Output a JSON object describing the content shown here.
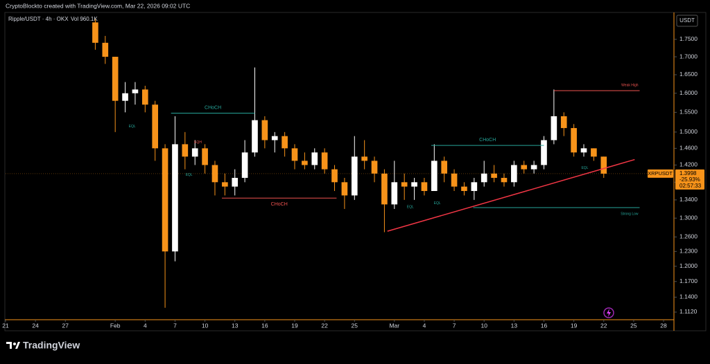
{
  "header": {
    "text": "CryptoBlockto created with TradingView.com, Mar 22, 2026 09:02 UTC"
  },
  "chart_data": {
    "type": "candlestick",
    "title": "Ripple/USDT · 4h · OKX",
    "volume_label": "Vol 960.1K",
    "currency": "USDT",
    "symbol": "XRPUSDT",
    "last_price": 1.3998,
    "change": {
      "value": -25.93,
      "label": "-25.93%"
    },
    "countdown": "02:57:33",
    "up_color": "#ffffff",
    "down_color": "#f7931a",
    "log_scale": true,
    "xlim": [
      0,
      67.04
    ],
    "ylim": [
      1.098,
      1.83
    ],
    "xticks": [
      {
        "value": 0,
        "label": "21"
      },
      {
        "value": 3,
        "label": "24"
      },
      {
        "value": 6,
        "label": "27"
      },
      {
        "value": 11,
        "label": "Feb"
      },
      {
        "value": 14,
        "label": "4"
      },
      {
        "value": 17,
        "label": "7"
      },
      {
        "value": 20,
        "label": "10"
      },
      {
        "value": 23,
        "label": "13"
      },
      {
        "value": 26,
        "label": "16"
      },
      {
        "value": 29,
        "label": "19"
      },
      {
        "value": 32,
        "label": "22"
      },
      {
        "value": 35,
        "label": "25"
      },
      {
        "value": 39,
        "label": "Mar"
      },
      {
        "value": 42,
        "label": "4"
      },
      {
        "value": 45,
        "label": "7"
      },
      {
        "value": 48,
        "label": "10"
      },
      {
        "value": 51,
        "label": "13"
      },
      {
        "value": 54,
        "label": "16"
      },
      {
        "value": 57,
        "label": "19"
      },
      {
        "value": 60,
        "label": "22"
      },
      {
        "value": 63,
        "label": "25"
      },
      {
        "value": 66,
        "label": "28"
      }
    ],
    "yticks": [
      {
        "value": 1.75,
        "label": "1.7500"
      },
      {
        "value": 1.7,
        "label": "1.7000"
      },
      {
        "value": 1.65,
        "label": "1.6500"
      },
      {
        "value": 1.6,
        "label": "1.6000"
      },
      {
        "value": 1.55,
        "label": "1.5500"
      },
      {
        "value": 1.5,
        "label": "1.5000"
      },
      {
        "value": 1.46,
        "label": "1.4600"
      },
      {
        "value": 1.42,
        "label": "1.4200"
      },
      {
        "value": 1.38,
        "label": "1.3800"
      },
      {
        "value": 1.34,
        "label": "1.3400"
      },
      {
        "value": 1.3,
        "label": "1.3000"
      },
      {
        "value": 1.26,
        "label": "1.2600"
      },
      {
        "value": 1.23,
        "label": "1.2300"
      },
      {
        "value": 1.2,
        "label": "1.2000"
      },
      {
        "value": 1.17,
        "label": "1.1700"
      },
      {
        "value": 1.14,
        "label": "1.1400"
      },
      {
        "value": 1.112,
        "label": "1.1120"
      }
    ],
    "x": [
      9,
      10,
      11,
      12,
      13,
      14,
      15,
      16,
      17,
      18,
      19,
      20,
      21,
      22,
      23,
      24,
      25,
      26,
      27,
      28,
      29,
      30,
      31,
      32,
      33,
      34,
      35,
      36,
      37,
      38,
      39,
      40,
      41,
      42,
      43,
      44,
      45,
      46,
      47,
      48,
      49,
      50,
      51,
      52,
      53,
      54,
      55,
      56,
      57,
      58,
      59,
      60
    ],
    "open": [
      1.8,
      1.74,
      1.7,
      1.58,
      1.6,
      1.61,
      1.57,
      1.46,
      1.23,
      1.47,
      1.44,
      1.46,
      1.42,
      1.38,
      1.37,
      1.39,
      1.45,
      1.53,
      1.48,
      1.49,
      1.46,
      1.43,
      1.42,
      1.45,
      1.41,
      1.38,
      1.35,
      1.44,
      1.43,
      1.4,
      1.33,
      1.38,
      1.37,
      1.38,
      1.36,
      1.43,
      1.4,
      1.37,
      1.36,
      1.38,
      1.4,
      1.39,
      1.38,
      1.42,
      1.41,
      1.42,
      1.48,
      1.54,
      1.51,
      1.45,
      1.46,
      1.44
    ],
    "high": [
      1.81,
      1.76,
      1.7,
      1.63,
      1.63,
      1.62,
      1.58,
      1.47,
      1.54,
      1.5,
      1.48,
      1.47,
      1.43,
      1.4,
      1.41,
      1.48,
      1.67,
      1.54,
      1.5,
      1.5,
      1.47,
      1.45,
      1.46,
      1.46,
      1.42,
      1.39,
      1.49,
      1.48,
      1.44,
      1.41,
      1.43,
      1.4,
      1.39,
      1.39,
      1.47,
      1.44,
      1.41,
      1.38,
      1.39,
      1.43,
      1.42,
      1.4,
      1.43,
      1.43,
      1.43,
      1.49,
      1.61,
      1.55,
      1.52,
      1.47,
      1.46,
      1.44
    ],
    "low": [
      1.72,
      1.68,
      1.5,
      1.55,
      1.57,
      1.55,
      1.43,
      1.12,
      1.21,
      1.41,
      1.42,
      1.4,
      1.35,
      1.35,
      1.35,
      1.38,
      1.44,
      1.46,
      1.45,
      1.44,
      1.41,
      1.41,
      1.41,
      1.4,
      1.36,
      1.32,
      1.34,
      1.41,
      1.38,
      1.27,
      1.32,
      1.34,
      1.34,
      1.35,
      1.36,
      1.38,
      1.36,
      1.35,
      1.34,
      1.37,
      1.38,
      1.37,
      1.37,
      1.4,
      1.4,
      1.41,
      1.47,
      1.49,
      1.44,
      1.44,
      1.43,
      1.39
    ],
    "close": [
      1.74,
      1.7,
      1.58,
      1.6,
      1.61,
      1.57,
      1.46,
      1.23,
      1.47,
      1.44,
      1.46,
      1.42,
      1.38,
      1.37,
      1.39,
      1.45,
      1.53,
      1.48,
      1.49,
      1.46,
      1.43,
      1.42,
      1.45,
      1.41,
      1.38,
      1.35,
      1.44,
      1.43,
      1.4,
      1.33,
      1.38,
      1.37,
      1.38,
      1.36,
      1.43,
      1.4,
      1.37,
      1.36,
      1.38,
      1.4,
      1.39,
      1.38,
      1.42,
      1.41,
      1.42,
      1.48,
      1.54,
      1.51,
      1.45,
      1.46,
      1.44,
      1.3998
    ],
    "annotations": [
      {
        "text": "CHoCH",
        "x1": 16.6,
        "x2": 25.0,
        "y": 1.548,
        "color": "#26a69a",
        "label_position": "above"
      },
      {
        "text": "CHoCH",
        "x1": 21.7,
        "x2": 33.2,
        "y": 1.344,
        "color": "#ef5350",
        "label_position": "below"
      },
      {
        "text": "CHoCH",
        "x1": 42.7,
        "x2": 54.0,
        "y": 1.467,
        "color": "#26a69a",
        "label_position": "above"
      },
      {
        "text": "Weak High",
        "x1": 55.0,
        "x2": 63.6,
        "y": 1.607,
        "color": "#ef5350",
        "label_position": "above-end"
      },
      {
        "text": "Strong Low",
        "x1": 46.9,
        "x2": 63.6,
        "y": 1.323,
        "color": "#26a69a",
        "label_position": "below-end"
      }
    ],
    "labels": [
      {
        "text": "EQL",
        "x": 12.7,
        "y": 1.514,
        "color": "#26a69a"
      },
      {
        "text": "EQL",
        "x": 18.4,
        "y": 1.397,
        "color": "#26a69a"
      },
      {
        "text": "EQH",
        "x": 19.3,
        "y": 1.475,
        "color": "#ef5350"
      },
      {
        "text": "EQL",
        "x": 40.6,
        "y": 1.324,
        "color": "#26a69a"
      },
      {
        "text": "EQL",
        "x": 43.3,
        "y": 1.333,
        "color": "#26a69a"
      },
      {
        "text": "EQL",
        "x": 58.1,
        "y": 1.413,
        "color": "#26a69a"
      }
    ],
    "trendline": {
      "x1": 38.3,
      "y1": 1.272,
      "x2": 63.1,
      "y2": 1.433,
      "color": "#f23645"
    }
  },
  "footer": {
    "brand": "TradingView"
  }
}
